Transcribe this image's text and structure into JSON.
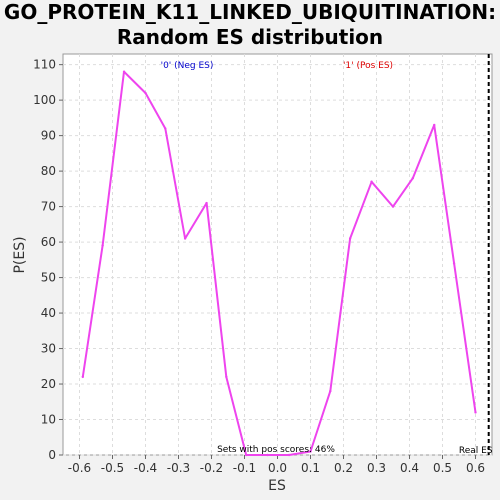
{
  "chart_data": {
    "type": "line",
    "title_line1": "GO_PROTEIN_K11_LINKED_UBIQUITINATION:",
    "title_line2": "Random ES distribution",
    "xlabel": "ES",
    "ylabel": "P(ES)",
    "xlim": [
      -0.65,
      0.65
    ],
    "ylim": [
      0,
      113
    ],
    "xticks": [
      -0.6,
      -0.5,
      -0.4,
      -0.3,
      -0.2,
      -0.1,
      0.0,
      0.1,
      0.2,
      0.3,
      0.4,
      0.5,
      0.6
    ],
    "xtick_labels": [
      "-0.6",
      "-0.5",
      "-0.4",
      "-0.3",
      "-0.2",
      "-0.1",
      "0.0",
      "0.1",
      "0.2",
      "0.3",
      "0.4",
      "0.5",
      "0.6"
    ],
    "yticks": [
      0,
      10,
      20,
      30,
      40,
      50,
      60,
      70,
      80,
      90,
      100,
      110
    ],
    "ytick_labels": [
      "0",
      "10",
      "20",
      "30",
      "40",
      "50",
      "60",
      "70",
      "80",
      "90",
      "100",
      "110"
    ],
    "grid": true,
    "series": [
      {
        "color": "#ee44ee",
        "x": [
          -0.59,
          -0.53,
          -0.465,
          -0.4,
          -0.34,
          -0.28,
          -0.215,
          -0.155,
          -0.095,
          -0.03,
          0.035,
          0.1,
          0.16,
          0.22,
          0.285,
          0.35,
          0.41,
          0.475,
          0.535,
          0.6
        ],
        "y": [
          22,
          59,
          108,
          102,
          92,
          61,
          71,
          22,
          0,
          0,
          0,
          1,
          18,
          61,
          77,
          70,
          78,
          93,
          54,
          12
        ]
      }
    ],
    "real_es": 0.64,
    "real_es_label": "Real ES",
    "neg_label": "'0' (Neg ES)",
    "neg_color": "#0000cc",
    "pos_label": "'1' (Pos ES)",
    "pos_color": "#dd0000",
    "annotation": "Sets with pos scores: 46%"
  }
}
